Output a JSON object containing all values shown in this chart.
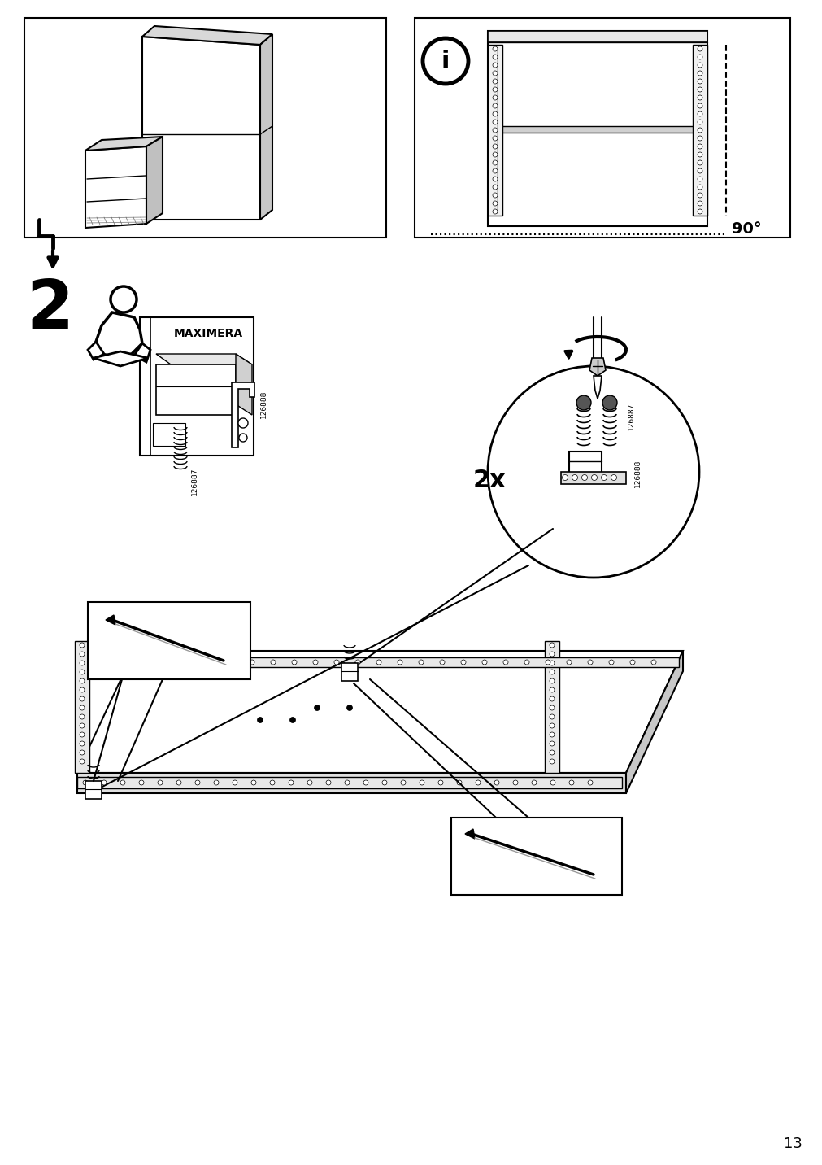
{
  "bg_color": "#ffffff",
  "page_number": "13",
  "step_number": "2",
  "label_2x": "2x",
  "degree_label": "90°",
  "part_number_1": "126887",
  "part_number_2": "126888",
  "maximera_text": "MAXIMERA"
}
